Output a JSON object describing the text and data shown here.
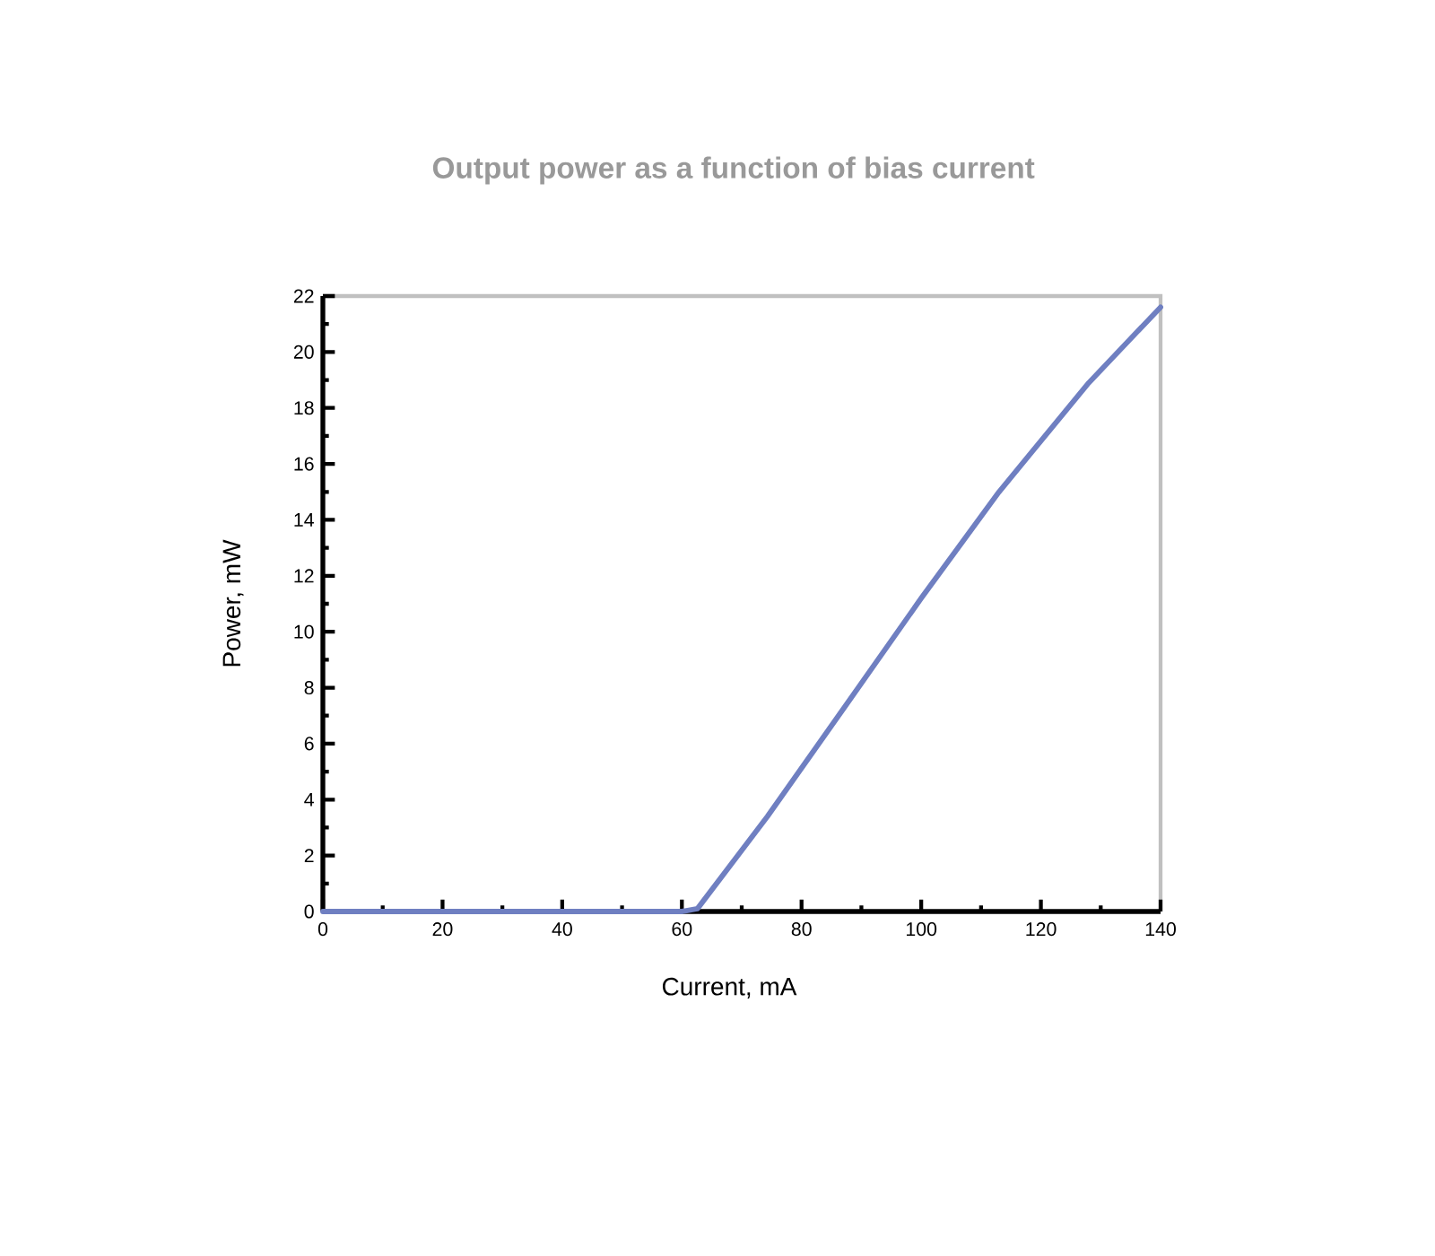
{
  "chart_data": {
    "type": "line",
    "title": "Output power as a function of bias current",
    "xlabel": "Current, mA",
    "ylabel": "Power, mW",
    "x": [
      0,
      60,
      62.6,
      74.3,
      87.5,
      100,
      113,
      128,
      140
    ],
    "values": [
      0,
      0,
      0.1,
      3.4,
      7.4,
      11.2,
      15.0,
      18.9,
      21.6
    ],
    "color": "#6f7fc1",
    "line_style": "solid",
    "xlim": [
      0,
      140
    ],
    "ylim": [
      0,
      22
    ],
    "xticks": [
      0,
      {
        "value": 10,
        "label": null
      },
      20,
      {
        "value": 30,
        "label": null
      },
      40,
      {
        "value": 50,
        "label": null
      },
      60,
      {
        "value": 70,
        "label": null
      },
      80,
      {
        "value": 90,
        "label": null
      },
      100,
      {
        "value": 110,
        "label": null
      },
      120,
      {
        "value": 130,
        "label": null
      },
      140
    ],
    "yticks": [
      0,
      {
        "value": 1,
        "label": null
      },
      2,
      {
        "value": 3,
        "label": null
      },
      4,
      {
        "value": 5,
        "label": null
      },
      6,
      {
        "value": 7,
        "label": null
      },
      8,
      {
        "value": 9,
        "label": null
      },
      10,
      {
        "value": 11,
        "label": null
      },
      12,
      {
        "value": 13,
        "label": null
      },
      14,
      {
        "value": 15,
        "label": null
      },
      16,
      {
        "value": 17,
        "label": null
      },
      18,
      {
        "value": 19,
        "label": null
      },
      20,
      {
        "value": 21,
        "label": null
      },
      22
    ]
  }
}
